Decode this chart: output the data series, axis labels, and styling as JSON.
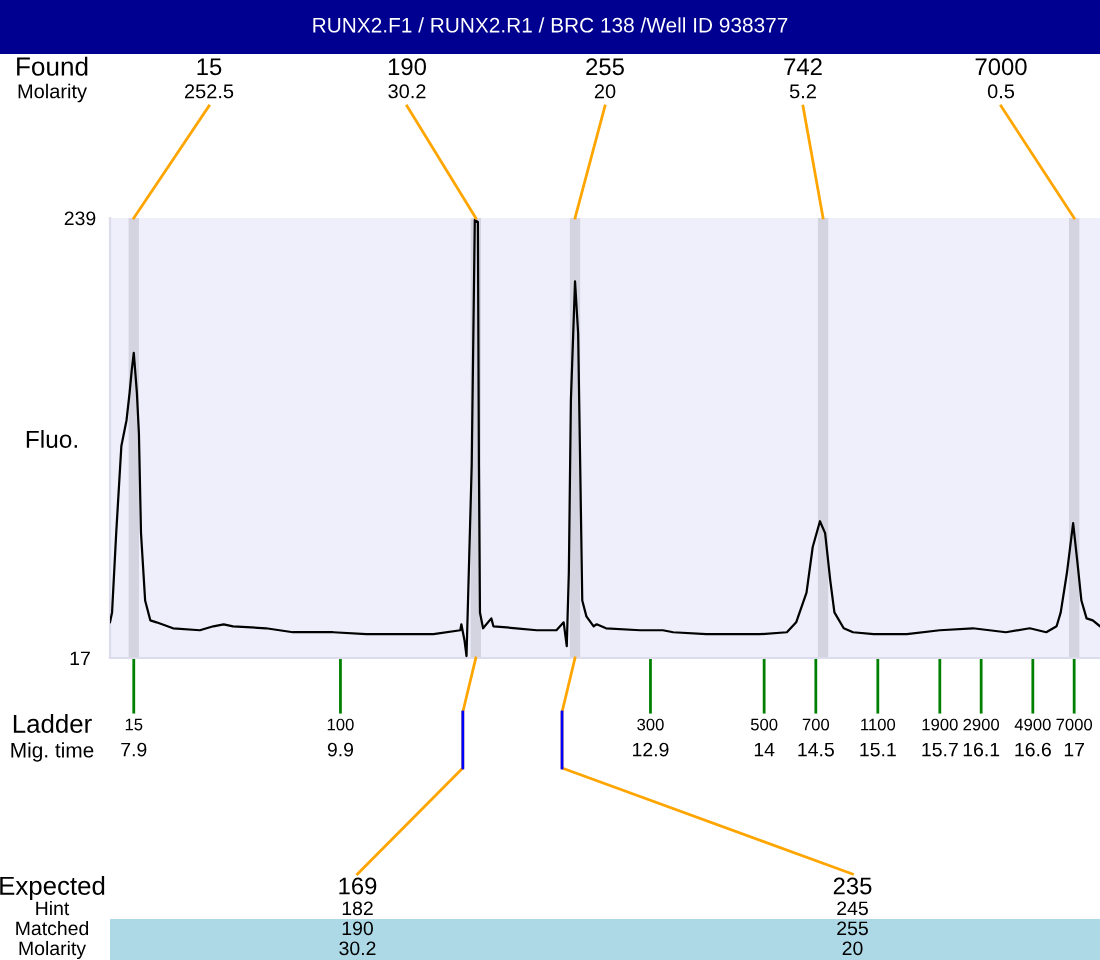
{
  "chart_data": {
    "type": "line",
    "title": "RUNX2.F1 / RUNX2.R1 / BRC 138 /Well ID 938377",
    "ylabel": "Fluo.",
    "xlabel": "Mig. time",
    "x": [
      7.67,
      7.69,
      7.73,
      7.78,
      7.83,
      7.86,
      7.88,
      7.9,
      7.93,
      7.95,
      7.97,
      8.01,
      8.06,
      8.12,
      8.28,
      8.54,
      8.67,
      8.77,
      8.86,
      9.18,
      9.44,
      9.83,
      10.15,
      10.47,
      10.8,
      11.06,
      11.07,
      11.1,
      11.12,
      11.17,
      11.2,
      11.23,
      11.24,
      11.25,
      11.28,
      11.36,
      11.38,
      11.6,
      11.8,
      11.99,
      12.06,
      12.09,
      12.11,
      12.13,
      12.17,
      12.2,
      12.22,
      12.24,
      12.28,
      12.35,
      12.38,
      12.47,
      12.8,
      13.02,
      13.12,
      13.44,
      13.76,
      13.96,
      14.22,
      14.31,
      14.41,
      14.47,
      14.54,
      14.59,
      14.64,
      14.68,
      14.77,
      14.86,
      15.06,
      15.38,
      15.7,
      16.02,
      16.34,
      16.57,
      16.73,
      16.83,
      16.87,
      16.93,
      16.99,
      17.03,
      17.07,
      17.12,
      17.18,
      17.25
    ],
    "values": [
      35,
      40,
      80,
      124,
      137,
      151,
      162,
      171,
      151,
      130,
      80,
      46,
      36,
      35,
      32,
      31,
      33,
      34,
      33,
      32,
      30,
      30,
      29,
      29,
      29,
      31,
      34,
      26,
      18,
      114,
      238,
      237,
      114,
      40,
      32,
      37,
      33,
      32,
      31,
      31,
      35,
      23,
      60,
      147,
      207,
      181,
      114,
      46,
      38,
      33,
      34,
      32,
      31,
      31,
      30,
      29,
      29,
      29,
      30,
      35,
      50,
      73,
      86,
      80,
      56,
      40,
      32,
      30,
      29,
      29,
      31,
      32,
      30,
      32,
      30,
      33,
      40,
      60,
      85,
      66,
      46,
      37,
      36,
      33
    ],
    "color": "#000000",
    "xlim": [
      7.67,
      17.25
    ],
    "xticks": [
      7.9,
      9.9,
      12.9,
      14,
      14.5,
      15.1,
      15.7,
      16.1,
      16.6,
      17
    ],
    "ylim": [
      17,
      239
    ],
    "yticks": [
      17,
      239
    ],
    "bands": [
      {
        "axis": "x",
        "from": 7.85,
        "to": 7.95,
        "color": "#d4d4e0"
      },
      {
        "axis": "x",
        "from": 11.16,
        "to": 11.26,
        "color": "#d4d4e0"
      },
      {
        "axis": "x",
        "from": 12.12,
        "to": 12.22,
        "color": "#d4d4e0"
      },
      {
        "axis": "x",
        "from": 14.52,
        "to": 14.62,
        "color": "#d4d4e0"
      },
      {
        "axis": "x",
        "from": 16.95,
        "to": 17.05,
        "color": "#d4d4e0"
      }
    ],
    "annotations": [
      "Found\nMolarity",
      {
        "text": "15\n252.5",
        "x": 7.9,
        "y": 239
      },
      {
        "text": "190\n30.2",
        "x": 11.21,
        "y": 239
      },
      {
        "text": "255\n20",
        "x": 12.17,
        "y": 239
      },
      {
        "text": "742\n5.2",
        "x": 14.57,
        "y": 239
      },
      {
        "text": "7000\n0.5",
        "x": 17.0,
        "y": 239
      },
      "Ladder",
      "15",
      "100",
      "300",
      "500",
      "700",
      "1100",
      "1900",
      "2900",
      "4900",
      "7000",
      "Expected\nHint\nMatched\nMolarity",
      {
        "text": "169\n182\n190\n30.2",
        "x": 11.21,
        "y": 17
      },
      {
        "text": "235\n245\n255\n20",
        "x": 12.17,
        "y": 17
      }
    ]
  }
}
